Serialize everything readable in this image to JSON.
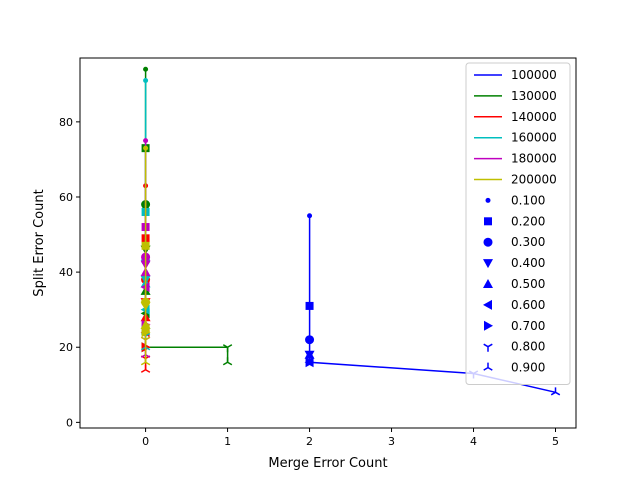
{
  "chart_data": {
    "type": "line",
    "title": "",
    "xlabel": "Merge Error Count",
    "ylabel": "Split Error Count",
    "xlim": [
      -0.8,
      5.25
    ],
    "ylim": [
      -1.5,
      97
    ],
    "x_ticks": [
      0,
      1,
      2,
      3,
      4,
      5
    ],
    "y_ticks": [
      0,
      20,
      40,
      60,
      80
    ],
    "grid": false,
    "legend_position": "top-right",
    "thresholds": [
      "0.100",
      "0.200",
      "0.300",
      "0.400",
      "0.500",
      "0.600",
      "0.700",
      "0.800",
      "0.900"
    ],
    "markers": [
      "point",
      "square",
      "circle",
      "triangle-down",
      "triangle-up",
      "triangle-left",
      "triangle-right",
      "tri-down",
      "tri-up"
    ],
    "series": [
      {
        "name": "100000",
        "color": "#0000ff",
        "x": [
          2,
          2,
          2,
          2,
          2,
          2,
          2,
          4,
          5
        ],
        "y": [
          55,
          31,
          22,
          18,
          18,
          16,
          16,
          13,
          8
        ]
      },
      {
        "name": "130000",
        "color": "#008000",
        "x": [
          0,
          0,
          0,
          0,
          0,
          0,
          0,
          1,
          1
        ],
        "y": [
          94,
          73,
          58,
          46,
          35,
          29,
          20,
          20,
          16
        ]
      },
      {
        "name": "140000",
        "color": "#ff0000",
        "x": [
          0,
          0,
          0,
          0,
          0,
          0,
          0,
          0,
          0
        ],
        "y": [
          63,
          49,
          38,
          32,
          28,
          24,
          20,
          17,
          14
        ]
      },
      {
        "name": "160000",
        "color": "#00bfbf",
        "x": [
          0,
          0,
          0,
          0,
          0,
          0,
          0,
          0,
          0
        ],
        "y": [
          91,
          56,
          43,
          38,
          37,
          30,
          25,
          23,
          20
        ]
      },
      {
        "name": "180000",
        "color": "#bf00bf",
        "x": [
          0,
          0,
          0,
          0,
          0,
          0,
          0,
          0,
          0
        ],
        "y": [
          75,
          52,
          44,
          42,
          40,
          36,
          26,
          22,
          18
        ]
      },
      {
        "name": "200000",
        "color": "#bfbf00",
        "x": [
          0,
          0,
          0,
          0,
          0,
          0,
          0,
          0,
          0
        ],
        "y": [
          73,
          47,
          32,
          31,
          26,
          25,
          24,
          22,
          16
        ]
      }
    ]
  }
}
